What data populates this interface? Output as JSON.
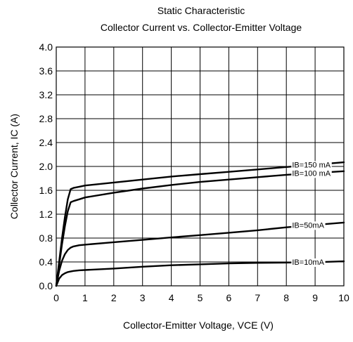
{
  "chart_data": {
    "type": "line",
    "title": "Static  Characteristic",
    "subtitle": "Collector Current vs. Collector-Emitter Voltage",
    "xlabel": "Collector-Emitter Voltage, VCE (V)",
    "ylabel": "Collector Current, IC (A)",
    "xlim": [
      0,
      10
    ],
    "ylim": [
      0,
      4.0
    ],
    "x_ticks": [
      "0",
      "1",
      "2",
      "3",
      "4",
      "5",
      "6",
      "7",
      "8",
      "9",
      "10"
    ],
    "y_ticks": [
      "0.0",
      "0.4",
      "0.8",
      "1.2",
      "1.6",
      "2.0",
      "2.4",
      "2.8",
      "3.2",
      "3.6",
      "4.0"
    ],
    "grid": true,
    "series": [
      {
        "name": "IB=150 mA",
        "x": [
          0,
          0.1,
          0.2,
          0.3,
          0.4,
          0.5,
          0.6,
          0.8,
          1.0,
          2,
          3,
          4,
          5,
          6,
          7,
          8,
          9,
          10
        ],
        "y": [
          0,
          0.4,
          0.8,
          1.15,
          1.45,
          1.62,
          1.64,
          1.66,
          1.68,
          1.73,
          1.78,
          1.83,
          1.87,
          1.91,
          1.95,
          1.99,
          2.03,
          2.07
        ]
      },
      {
        "name": "IB=100 mA",
        "x": [
          0,
          0.1,
          0.2,
          0.3,
          0.4,
          0.5,
          0.6,
          0.8,
          1.0,
          2,
          3,
          4,
          5,
          6,
          7,
          8,
          9,
          10
        ],
        "y": [
          0,
          0.35,
          0.7,
          1.0,
          1.25,
          1.4,
          1.42,
          1.45,
          1.48,
          1.56,
          1.63,
          1.69,
          1.74,
          1.78,
          1.82,
          1.86,
          1.89,
          1.92
        ]
      },
      {
        "name": "IB=50mA",
        "x": [
          0,
          0.1,
          0.2,
          0.3,
          0.4,
          0.5,
          0.6,
          0.8,
          1.0,
          2,
          3,
          4,
          5,
          6,
          7,
          8,
          9,
          10
        ],
        "y": [
          0,
          0.25,
          0.42,
          0.53,
          0.6,
          0.64,
          0.66,
          0.68,
          0.69,
          0.73,
          0.77,
          0.81,
          0.85,
          0.89,
          0.93,
          0.98,
          1.02,
          1.06
        ]
      },
      {
        "name": "IB=10mA",
        "x": [
          0,
          0.1,
          0.2,
          0.3,
          0.4,
          0.5,
          0.6,
          0.8,
          1.0,
          2,
          3,
          4,
          5,
          6,
          7,
          8,
          9,
          10
        ],
        "y": [
          0,
          0.12,
          0.18,
          0.21,
          0.23,
          0.24,
          0.25,
          0.26,
          0.265,
          0.29,
          0.32,
          0.345,
          0.36,
          0.375,
          0.385,
          0.39,
          0.395,
          0.41
        ]
      }
    ]
  }
}
